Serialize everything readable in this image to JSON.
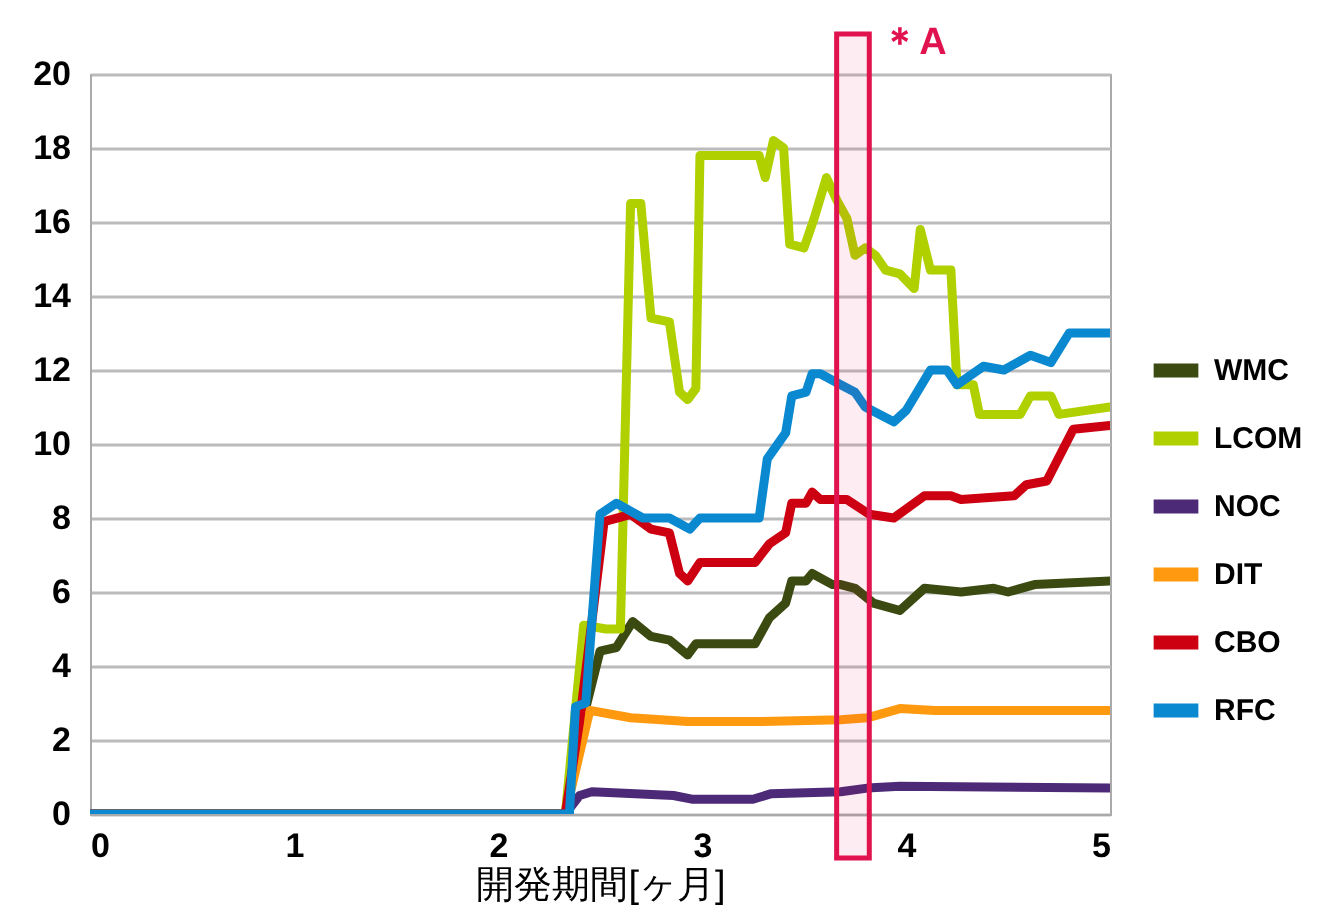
{
  "chart_data": {
    "type": "line",
    "xlabel": "開発期間[ヶ月]",
    "xlim": [
      0,
      5
    ],
    "xticks": [
      0,
      1,
      2,
      3,
      4,
      5
    ],
    "ylim": [
      0,
      20
    ],
    "yticks": [
      0,
      2,
      4,
      6,
      8,
      10,
      12,
      14,
      16,
      18,
      20
    ],
    "grid": "y",
    "legend": "right",
    "marker": "none",
    "line_style": "solid",
    "bands": [
      {
        "axis": "x",
        "from": 3.66,
        "to": 3.82,
        "label": "＊A",
        "color": "#e0134f"
      }
    ],
    "series": [
      {
        "name": "WMC",
        "color": "#3a4a10",
        "x": [
          0,
          2.33,
          2.4,
          2.5,
          2.58,
          2.66,
          2.75,
          2.84,
          2.93,
          2.97,
          3.26,
          3.33,
          3.41,
          3.44,
          3.51,
          3.54,
          3.64,
          3.68,
          3.75,
          3.84,
          3.97,
          4.09,
          4.27,
          4.43,
          4.5,
          4.63,
          5.0
        ],
        "values": [
          0,
          0,
          2.2,
          4.4,
          4.5,
          5.2,
          4.8,
          4.7,
          4.3,
          4.6,
          4.6,
          5.3,
          5.7,
          6.3,
          6.3,
          6.5,
          6.2,
          6.2,
          6.1,
          5.7,
          5.5,
          6.1,
          6.0,
          6.1,
          6.0,
          6.2,
          6.3
        ]
      },
      {
        "name": "LCOM",
        "color": "#b0d000",
        "x": [
          0,
          2.33,
          2.42,
          2.53,
          2.6,
          2.65,
          2.7,
          2.75,
          2.84,
          2.89,
          2.93,
          2.97,
          2.99,
          3.28,
          3.31,
          3.35,
          3.4,
          3.43,
          3.5,
          3.55,
          3.61,
          3.66,
          3.71,
          3.75,
          3.8,
          3.85,
          3.9,
          3.97,
          4.04,
          4.07,
          4.12,
          4.22,
          4.25,
          4.33,
          4.36,
          4.56,
          4.61,
          4.71,
          4.75,
          5.0
        ],
        "values": [
          0,
          0,
          5.1,
          5.0,
          5.0,
          16.5,
          16.5,
          13.4,
          13.3,
          11.4,
          11.2,
          11.5,
          17.8,
          17.8,
          17.2,
          18.2,
          18.0,
          15.4,
          15.3,
          16.1,
          17.2,
          16.6,
          16.1,
          15.1,
          15.3,
          15.1,
          14.7,
          14.6,
          14.2,
          15.8,
          14.7,
          14.7,
          11.6,
          11.6,
          10.8,
          10.8,
          11.3,
          11.3,
          10.8,
          11.0
        ]
      },
      {
        "name": "NOC",
        "color": "#4d2a78",
        "x": [
          0,
          2.33,
          2.4,
          2.46,
          2.86,
          2.95,
          3.25,
          3.34,
          3.68,
          3.81,
          3.97,
          5.0
        ],
        "values": [
          0,
          0,
          0.5,
          0.6,
          0.5,
          0.4,
          0.4,
          0.55,
          0.6,
          0.7,
          0.75,
          0.7
        ]
      },
      {
        "name": "DIT",
        "color": "#ff9a10",
        "x": [
          0,
          2.33,
          2.45,
          2.65,
          2.93,
          3.28,
          3.68,
          3.81,
          3.97,
          4.14,
          5.0
        ],
        "values": [
          0,
          0,
          2.8,
          2.6,
          2.5,
          2.5,
          2.55,
          2.6,
          2.85,
          2.8,
          2.8
        ]
      },
      {
        "name": "CBO",
        "color": "#cc0010",
        "x": [
          0,
          2.33,
          2.4,
          2.52,
          2.65,
          2.75,
          2.84,
          2.89,
          2.93,
          2.99,
          3.26,
          3.33,
          3.41,
          3.44,
          3.51,
          3.54,
          3.58,
          3.71,
          3.82,
          3.94,
          4.09,
          4.22,
          4.27,
          4.53,
          4.59,
          4.69,
          4.82,
          5.0
        ],
        "values": [
          0,
          0,
          2.5,
          7.9,
          8.1,
          7.7,
          7.6,
          6.5,
          6.3,
          6.8,
          6.8,
          7.3,
          7.6,
          8.4,
          8.4,
          8.7,
          8.5,
          8.5,
          8.1,
          8.0,
          8.6,
          8.6,
          8.5,
          8.6,
          8.9,
          9.0,
          10.4,
          10.5
        ]
      },
      {
        "name": "RFC",
        "color": "#0a88d0",
        "x": [
          0,
          2.35,
          2.38,
          2.43,
          2.5,
          2.58,
          2.71,
          2.84,
          2.94,
          2.99,
          3.28,
          3.32,
          3.41,
          3.44,
          3.51,
          3.54,
          3.58,
          3.68,
          3.75,
          3.8,
          3.94,
          4.0,
          4.12,
          4.2,
          4.25,
          4.38,
          4.48,
          4.61,
          4.71,
          4.8,
          5.0
        ],
        "values": [
          0,
          0,
          2.9,
          3.0,
          8.1,
          8.4,
          8.0,
          8.0,
          7.7,
          8.0,
          8.0,
          9.6,
          10.3,
          11.3,
          11.4,
          11.9,
          11.9,
          11.6,
          11.4,
          11.0,
          10.6,
          10.9,
          12.0,
          12.0,
          11.6,
          12.1,
          12.0,
          12.4,
          12.2,
          13.0,
          13.0
        ]
      }
    ]
  }
}
